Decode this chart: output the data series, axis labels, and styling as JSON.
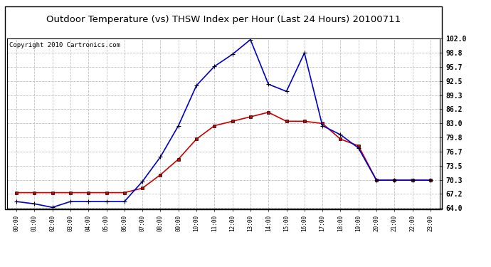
{
  "title": "Outdoor Temperature (vs) THSW Index per Hour (Last 24 Hours) 20100711",
  "copyright": "Copyright 2010 Cartronics.com",
  "hours": [
    "00:00",
    "01:00",
    "02:00",
    "03:00",
    "04:00",
    "05:00",
    "06:00",
    "07:00",
    "08:00",
    "09:00",
    "10:00",
    "11:00",
    "12:00",
    "13:00",
    "14:00",
    "15:00",
    "16:00",
    "17:00",
    "18:00",
    "19:00",
    "20:00",
    "21:00",
    "22:00",
    "23:00"
  ],
  "temp": [
    67.5,
    67.5,
    67.5,
    67.5,
    67.5,
    67.5,
    67.5,
    68.5,
    71.5,
    75.0,
    79.5,
    82.5,
    83.5,
    84.5,
    85.5,
    83.5,
    83.5,
    83.0,
    79.5,
    78.0,
    70.3,
    70.3,
    70.3,
    70.3
  ],
  "thsw": [
    65.5,
    65.0,
    64.2,
    65.5,
    65.5,
    65.5,
    65.5,
    70.0,
    75.5,
    82.5,
    91.5,
    95.8,
    98.5,
    101.8,
    91.8,
    90.2,
    98.8,
    82.5,
    80.5,
    77.5,
    70.3,
    70.3,
    70.3,
    70.3
  ],
  "ylim": [
    64.0,
    102.0
  ],
  "yticks": [
    64.0,
    67.2,
    70.3,
    73.5,
    76.7,
    79.8,
    83.0,
    86.2,
    89.3,
    92.5,
    95.7,
    98.8,
    102.0
  ],
  "temp_color": "#cc0000",
  "thsw_color": "#0000cc",
  "bg_color": "#ffffff",
  "grid_color": "#bbbbbb",
  "title_fontsize": 9.5,
  "copyright_fontsize": 6.5
}
